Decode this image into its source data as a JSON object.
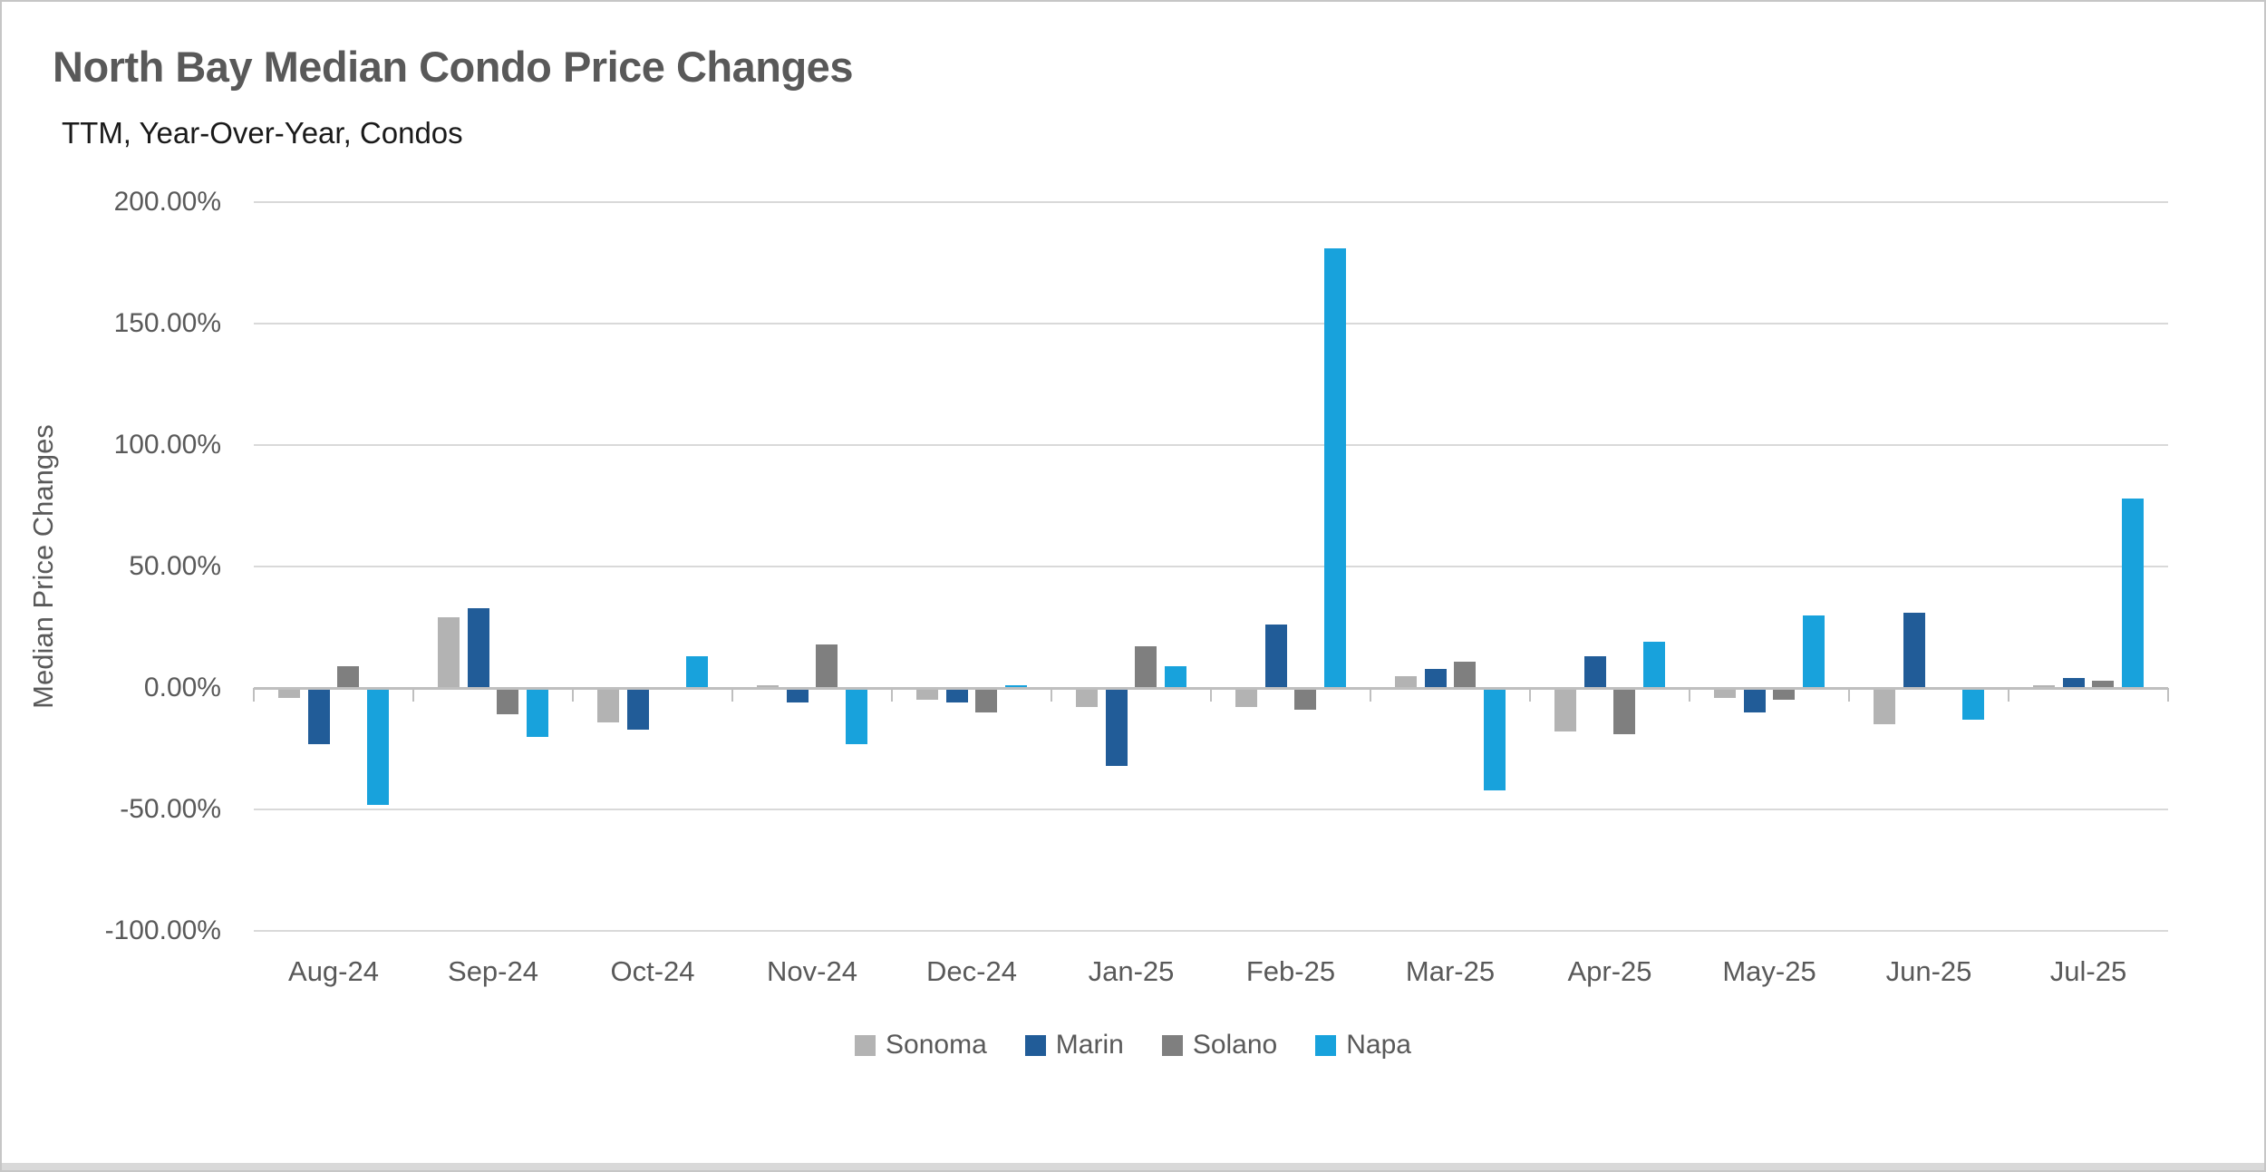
{
  "chart_data": {
    "type": "bar",
    "title": "North Bay Median Condo Price Changes",
    "subtitle": "TTM, Year-Over-Year, Condos",
    "ylabel": "Median Price Changes",
    "xlabel": "",
    "ylim": [
      -100,
      200
    ],
    "grid": true,
    "legend_position": "bottom",
    "yticks": [
      {
        "value": 200,
        "label": "200.00%"
      },
      {
        "value": 150,
        "label": "150.00%"
      },
      {
        "value": 100,
        "label": "100.00%"
      },
      {
        "value": 50,
        "label": "50.00%"
      },
      {
        "value": 0,
        "label": "0.00%"
      },
      {
        "value": -50,
        "label": "-50.00%"
      },
      {
        "value": -100,
        "label": "-100.00%"
      }
    ],
    "categories": [
      "Aug-24",
      "Sep-24",
      "Oct-24",
      "Nov-24",
      "Dec-24",
      "Jan-25",
      "Feb-25",
      "Mar-25",
      "Apr-25",
      "May-25",
      "Jun-25",
      "Jul-25"
    ],
    "series": [
      {
        "name": "Sonoma",
        "color": "#b3b3b3",
        "values": [
          -4,
          29,
          -14,
          1,
          -5,
          -8,
          -8,
          5,
          -18,
          -4,
          -15,
          1
        ]
      },
      {
        "name": "Marin",
        "color": "#215c98",
        "values": [
          -23,
          33,
          -17,
          -6,
          -6,
          -32,
          26,
          8,
          13,
          -10,
          31,
          4
        ]
      },
      {
        "name": "Solano",
        "color": "#7f7f7f",
        "values": [
          9,
          -11,
          0,
          18,
          -10,
          17,
          -9,
          11,
          -19,
          -5,
          0,
          3
        ]
      },
      {
        "name": "Napa",
        "color": "#18a2dc",
        "values": [
          -48,
          -20,
          13,
          -23,
          1,
          9,
          181,
          -42,
          19,
          30,
          -13,
          78
        ]
      }
    ]
  },
  "colors": {
    "title": "#595959",
    "subtitle": "#1a1a1a",
    "axis_labels": "#595959",
    "gridline": "#d9d9d9",
    "axis_line": "#bfbfbf",
    "legend_text": "#595959",
    "frame_border": "#c6c6c6",
    "bottom_strip": "#d9d9d9",
    "background": "#ffffff"
  }
}
